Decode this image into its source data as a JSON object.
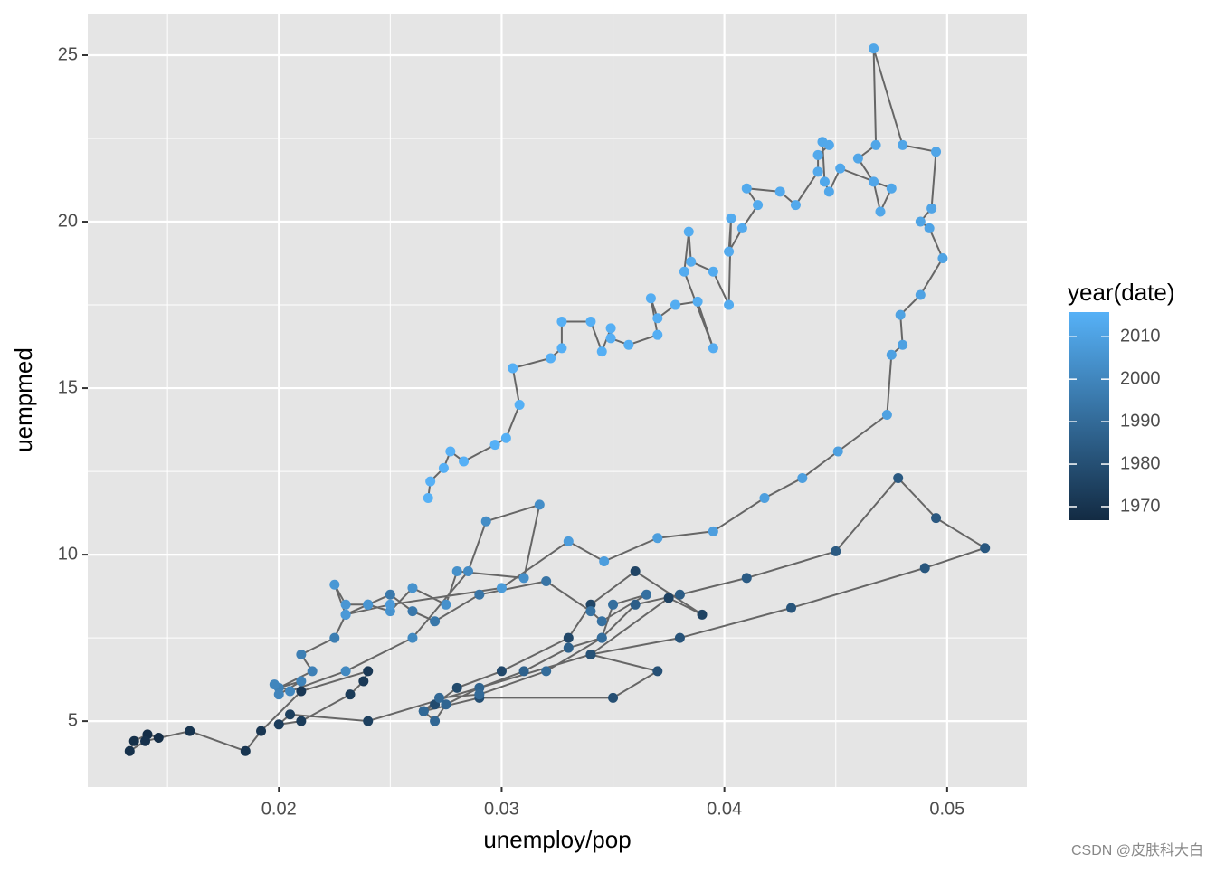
{
  "chart_data": {
    "type": "path-scatter",
    "x_label": "unemploy/pop",
    "y_label": "uempmed",
    "legend_title": "year(date)",
    "watermark": "CSDN @皮肤科大白",
    "xlim": [
      0.01142,
      0.05358
    ],
    "xticks": [
      0.02,
      0.03,
      0.04,
      0.05
    ],
    "ylim": [
      3.02,
      26.25
    ],
    "yticks": [
      5,
      10,
      15,
      20,
      25
    ],
    "grid": true,
    "line_color": "#666666",
    "colors": [
      "#132B43",
      "#56B1F7"
    ],
    "clim": [
      1966.8,
      2015.8
    ],
    "colorbar_ticks": [
      1970,
      1980,
      1990,
      2000,
      2010
    ],
    "x": [
      0.0146,
      0.0141,
      0.0135,
      0.0133,
      0.014,
      0.016,
      0.0185,
      0.0192,
      0.021,
      0.024,
      0.0238,
      0.0232,
      0.021,
      0.02,
      0.0205,
      0.024,
      0.034,
      0.0375,
      0.039,
      0.036,
      0.034,
      0.033,
      0.03,
      0.028,
      0.027,
      0.0265,
      0.029,
      0.035,
      0.037,
      0.034,
      0.038,
      0.043,
      0.049,
      0.0517,
      0.0495,
      0.0478,
      0.045,
      0.041,
      0.038,
      0.036,
      0.0345,
      0.033,
      0.031,
      0.029,
      0.0275,
      0.027,
      0.0265,
      0.0272,
      0.029,
      0.032,
      0.0345,
      0.035,
      0.0365,
      0.0345,
      0.034,
      0.032,
      0.029,
      0.027,
      0.026,
      0.025,
      0.024,
      0.023,
      0.0225,
      0.021,
      0.0215,
      0.02,
      0.021,
      0.02,
      0.0198,
      0.0205,
      0.023,
      0.026,
      0.0285,
      0.0293,
      0.0317,
      0.031,
      0.028,
      0.0275,
      0.026,
      0.025,
      0.024,
      0.023,
      0.0225,
      0.023,
      0.025,
      0.03,
      0.033,
      0.0346,
      0.037,
      0.0395,
      0.0418,
      0.0435,
      0.0451,
      0.0473,
      0.0475,
      0.048,
      0.0479,
      0.0488,
      0.0498,
      0.0492,
      0.0488,
      0.0493,
      0.0495,
      0.048,
      0.0467,
      0.0468,
      0.046,
      0.0467,
      0.047,
      0.0475,
      0.0452,
      0.0447,
      0.0445,
      0.0444,
      0.0447,
      0.0442,
      0.0442,
      0.0432,
      0.0425,
      0.041,
      0.0415,
      0.0408,
      0.0402,
      0.0403,
      0.0402,
      0.0395,
      0.0385,
      0.0384,
      0.0382,
      0.0395,
      0.0388,
      0.0378,
      0.037,
      0.0367,
      0.037,
      0.0357,
      0.0349,
      0.0349,
      0.0345,
      0.034,
      0.0327,
      0.0327,
      0.0322,
      0.0305,
      0.0308,
      0.0302,
      0.0297,
      0.0283,
      0.0277,
      0.0274,
      0.0268,
      0.0267
    ],
    "values": [
      4.5,
      4.6,
      4.4,
      4.1,
      4.4,
      4.7,
      4.1,
      4.7,
      5.9,
      6.5,
      6.2,
      5.8,
      5.0,
      4.9,
      5.2,
      5.0,
      7.0,
      8.7,
      8.2,
      9.5,
      8.5,
      7.5,
      6.5,
      6.0,
      5.5,
      5.3,
      5.7,
      5.7,
      6.5,
      7.0,
      7.5,
      8.4,
      9.6,
      10.2,
      11.1,
      12.3,
      10.1,
      9.3,
      8.8,
      8.5,
      7.5,
      7.2,
      6.5,
      6.0,
      5.5,
      5.0,
      5.3,
      5.7,
      5.8,
      6.5,
      7.5,
      8.5,
      8.8,
      8.0,
      8.3,
      9.2,
      8.8,
      8.0,
      8.3,
      8.8,
      8.5,
      8.2,
      7.5,
      7.0,
      6.5,
      6.0,
      6.2,
      5.8,
      6.1,
      5.9,
      6.5,
      7.5,
      9.5,
      11.0,
      11.5,
      9.3,
      9.5,
      8.5,
      9.0,
      8.3,
      8.5,
      8.5,
      9.1,
      8.2,
      8.5,
      9.0,
      10.4,
      9.8,
      10.5,
      10.7,
      11.7,
      12.3,
      13.1,
      14.2,
      16.0,
      16.3,
      17.2,
      17.8,
      18.9,
      19.8,
      20.0,
      20.4,
      22.1,
      22.3,
      25.2,
      22.3,
      21.9,
      21.2,
      20.3,
      21.0,
      21.6,
      20.9,
      21.2,
      22.4,
      22.3,
      22.0,
      21.5,
      20.5,
      20.9,
      21.0,
      20.5,
      19.8,
      19.1,
      20.1,
      17.5,
      18.5,
      18.8,
      19.7,
      18.5,
      16.2,
      17.6,
      17.5,
      17.1,
      17.7,
      16.6,
      16.3,
      16.5,
      16.8,
      16.1,
      17.0,
      17.0,
      16.2,
      15.9,
      15.6,
      14.5,
      13.5,
      13.3,
      12.8,
      13.1,
      12.6,
      12.2,
      11.7
    ],
    "years": [
      1967.5,
      1968,
      1968.5,
      1969,
      1969.5,
      1970,
      1970.5,
      1971,
      1971.3,
      1971.6,
      1972,
      1972.5,
      1973,
      1973.5,
      1974,
      1974.5,
      1975,
      1975.3,
      1975.6,
      1976,
      1976.5,
      1977,
      1977.5,
      1978,
      1978.5,
      1979,
      1979.5,
      1980,
      1980.5,
      1981,
      1981.5,
      1982,
      1982.5,
      1983,
      1983.3,
      1983.6,
      1984,
      1984.5,
      1985,
      1985.5,
      1986,
      1986.5,
      1987,
      1987.5,
      1988,
      1988.5,
      1989,
      1989.5,
      1990,
      1990.5,
      1991,
      1991.5,
      1992,
      1992.5,
      1993,
      1993.5,
      1994,
      1994.5,
      1995,
      1995.5,
      1996,
      1996.5,
      1997,
      1997.5,
      1998,
      1998.5,
      1999,
      1999.5,
      2000,
      2000.5,
      2001,
      2001.5,
      2002,
      2002.5,
      2003,
      2003.3,
      2003.6,
      2004,
      2004.5,
      2005,
      2005.5,
      2006,
      2006.5,
      2007,
      2007.5,
      2008,
      2008.3,
      2008.6,
      2008.8,
      2009,
      2009.2,
      2009.4,
      2009.6,
      2009.8,
      2010,
      2010.1,
      2010.2,
      2010.4,
      2010.6,
      2010.8,
      2011,
      2011.2,
      2011.4,
      2011.5,
      2011.6,
      2011.7,
      2011.8,
      2011.9,
      2012,
      2012.1,
      2012.2,
      2012.3,
      2012.4,
      2012.5,
      2012.6,
      2012.7,
      2012.8,
      2012.9,
      2013,
      2013.1,
      2013.2,
      2013.3,
      2013.4,
      2013.5,
      2013.6,
      2013.7,
      2013.8,
      2013.9,
      2014,
      2014.1,
      2014.2,
      2014.3,
      2014.4,
      2014.5,
      2014.6,
      2014.7,
      2014.8,
      2014.9,
      2015,
      2015.05,
      2015.1,
      2015.15,
      2015.2,
      2015.25,
      2015.3,
      2015.35,
      2015.4,
      2015.45,
      2015.5,
      2015.55,
      2015.6,
      2015.65
    ]
  }
}
